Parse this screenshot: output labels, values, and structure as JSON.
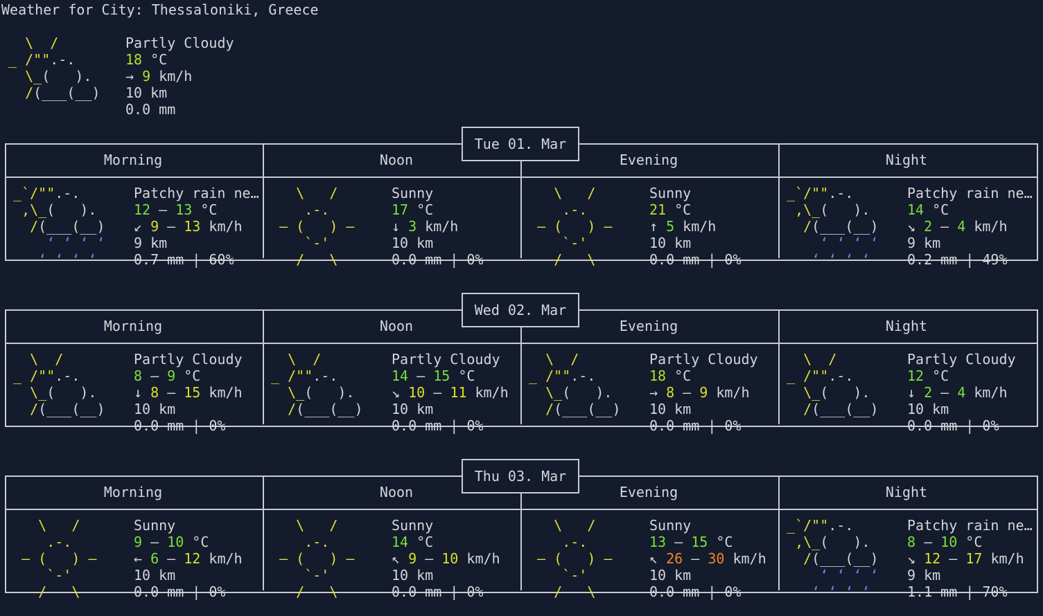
{
  "title": "Weather for City: Thessaloniki, Greece",
  "current": {
    "condition": "Partly Cloudy",
    "temp": "18",
    "temp_unit": "°C",
    "wind_arrow": "→",
    "wind": "9",
    "wind_unit": "km/h",
    "visibility": "10 km",
    "precip": "0.0 mm",
    "icon": "partly-cloudy"
  },
  "period_labels": [
    "Morning",
    "Noon",
    "Evening",
    "Night"
  ],
  "days": [
    {
      "date": "Tue 01. Mar",
      "periods": [
        {
          "icon": "patchy-rain",
          "condition": "Patchy rain ne…",
          "temp_lo": "12",
          "temp_hi": "13",
          "wind_arrow": "↙",
          "wind_lo": "9",
          "wind_hi": "13",
          "visibility": "9 km",
          "precip": "0.7 mm | 60%"
        },
        {
          "icon": "sunny",
          "condition": "Sunny",
          "temp_lo": "17",
          "temp_hi": "",
          "wind_arrow": "↓",
          "wind_lo": "3",
          "wind_hi": "",
          "visibility": "10 km",
          "precip": "0.0 mm | 0%"
        },
        {
          "icon": "sunny",
          "condition": "Sunny",
          "temp_lo": "21",
          "temp_hi": "",
          "wind_arrow": "↑",
          "wind_lo": "5",
          "wind_hi": "",
          "visibility": "10 km",
          "precip": "0.0 mm | 0%"
        },
        {
          "icon": "patchy-rain",
          "condition": "Patchy rain ne…",
          "temp_lo": "14",
          "temp_hi": "",
          "wind_arrow": "↘",
          "wind_lo": "2",
          "wind_hi": "4",
          "visibility": "9 km",
          "precip": "0.2 mm | 49%"
        }
      ]
    },
    {
      "date": "Wed 02. Mar",
      "periods": [
        {
          "icon": "partly-cloudy",
          "condition": "Partly Cloudy",
          "temp_lo": "8",
          "temp_hi": "9",
          "wind_arrow": "↓",
          "wind_lo": "8",
          "wind_hi": "15",
          "visibility": "10 km",
          "precip": "0.0 mm | 0%"
        },
        {
          "icon": "partly-cloudy",
          "condition": "Partly Cloudy",
          "temp_lo": "14",
          "temp_hi": "15",
          "wind_arrow": "↘",
          "wind_lo": "10",
          "wind_hi": "11",
          "visibility": "10 km",
          "precip": "0.0 mm | 0%"
        },
        {
          "icon": "partly-cloudy",
          "condition": "Partly Cloudy",
          "temp_lo": "18",
          "temp_hi": "",
          "wind_arrow": "→",
          "wind_lo": "8",
          "wind_hi": "9",
          "visibility": "10 km",
          "precip": "0.0 mm | 0%"
        },
        {
          "icon": "partly-cloudy",
          "condition": "Partly Cloudy",
          "temp_lo": "12",
          "temp_hi": "",
          "wind_arrow": "↓",
          "wind_lo": "2",
          "wind_hi": "4",
          "visibility": "10 km",
          "precip": "0.0 mm | 0%"
        }
      ]
    },
    {
      "date": "Thu 03. Mar",
      "periods": [
        {
          "icon": "sunny",
          "condition": "Sunny",
          "temp_lo": "9",
          "temp_hi": "10",
          "wind_arrow": "←",
          "wind_lo": "6",
          "wind_hi": "12",
          "visibility": "10 km",
          "precip": "0.0 mm | 0%"
        },
        {
          "icon": "sunny",
          "condition": "Sunny",
          "temp_lo": "14",
          "temp_hi": "",
          "wind_arrow": "↖",
          "wind_lo": "9",
          "wind_hi": "10",
          "visibility": "10 km",
          "precip": "0.0 mm | 0%"
        },
        {
          "icon": "sunny",
          "condition": "Sunny",
          "temp_lo": "13",
          "temp_hi": "15",
          "wind_arrow": "↖",
          "wind_lo": "26",
          "wind_hi": "30",
          "visibility": "10 km",
          "precip": "0.0 mm | 0%"
        },
        {
          "icon": "patchy-rain",
          "condition": "Patchy rain ne…",
          "temp_lo": "8",
          "temp_hi": "10",
          "wind_arrow": "↘",
          "wind_lo": "12",
          "wind_hi": "17",
          "visibility": "9 km",
          "precip": "1.1 mm | 70%"
        }
      ]
    }
  ],
  "colors": {
    "background": "#141b2c",
    "text": "#d4d7dc",
    "sun": "#e6de36",
    "temp_green": "#7be03a",
    "wind_orange": "#f08326",
    "rain_blue": "#5b8ef0",
    "border": "#c9ccd1"
  }
}
